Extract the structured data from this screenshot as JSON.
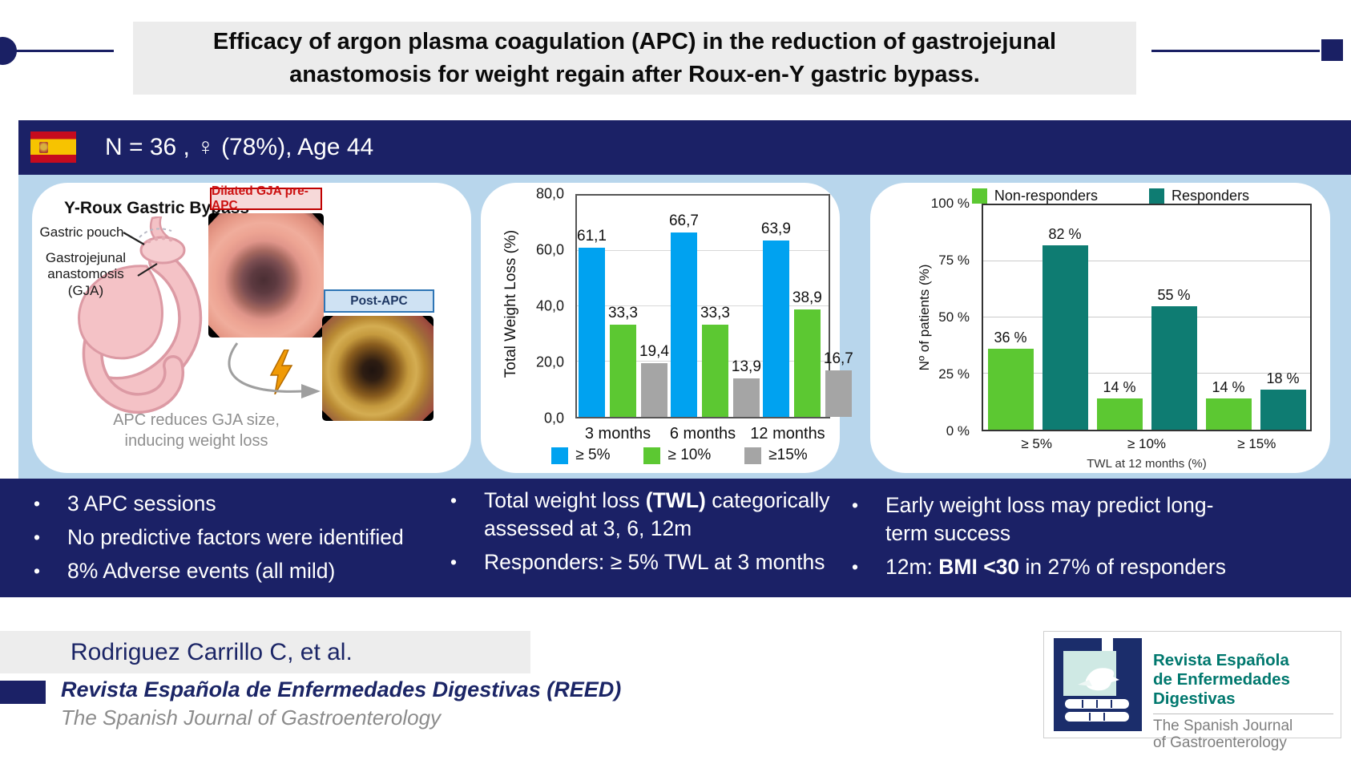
{
  "title": {
    "line1": "Efficacy of argon plasma coagulation (APC) in the reduction of gastrojejunal",
    "line2": "anastomosis for weight regain after Roux-en-Y gastric bypass."
  },
  "header": {
    "population": "N = 36 ,  ♀ (78%), Age 44"
  },
  "diagram": {
    "title": "Y-Roux Gastric Bypass",
    "label_pouch": "Gastric pouch",
    "label_gja_1": "Gastrojejunal",
    "label_gja_2": "anastomosis",
    "label_gja_3": "(GJA)",
    "pre_apc_label": "Dilated GJA pre-APC",
    "post_apc_label": "Post-APC",
    "caption_1": "APC reduces GJA size,",
    "caption_2": "inducing weight loss"
  },
  "chart_data": [
    {
      "type": "bar",
      "title": "",
      "ylabel": "Total Weight Loss (%)",
      "xlabel": "",
      "categories": [
        "3 months",
        "6 months",
        "12 months"
      ],
      "series": [
        {
          "name": "≥ 5%",
          "color": "#00a2f0",
          "values": [
            61.1,
            66.7,
            63.9
          ],
          "labels": [
            "61,1",
            "66,7",
            "63,9"
          ]
        },
        {
          "name": "≥ 10%",
          "color": "#5cc832",
          "values": [
            33.3,
            33.3,
            38.9
          ],
          "labels": [
            "33,3",
            "33,3",
            "38,9"
          ]
        },
        {
          "name": "≥15%",
          "color": "#a5a5a5",
          "values": [
            19.4,
            13.9,
            16.7
          ],
          "labels": [
            "19,4",
            "13,9",
            "16,7"
          ]
        }
      ],
      "ylim": [
        0,
        80
      ],
      "yticks": [
        "80,0",
        "60,0",
        "40,0",
        "20,0",
        "0,0"
      ],
      "gridlines_pct": [
        25,
        50,
        75
      ],
      "grid": true,
      "legend_position": "bottom"
    },
    {
      "type": "bar",
      "title": "",
      "ylabel": "Nº of patients (%)",
      "xlabel": "TWL at 12 months (%)",
      "categories": [
        "≥ 5%",
        "≥ 10%",
        "≥ 15%"
      ],
      "series": [
        {
          "name": "Non-responders",
          "color": "#5cc832",
          "values": [
            36,
            14,
            14
          ],
          "labels": [
            "36 %",
            "14 %",
            "14 %"
          ]
        },
        {
          "name": "Responders",
          "color": "#0e7c72",
          "values": [
            82,
            55,
            18
          ],
          "labels": [
            "82 %",
            "55 %",
            "18 %"
          ]
        }
      ],
      "ylim": [
        0,
        100
      ],
      "yticks": [
        "100 %",
        "75 %",
        "50 %",
        "25 %",
        "0 %"
      ],
      "gridlines_pct": [
        25,
        50,
        75
      ],
      "grid": true,
      "legend_position": "top"
    }
  ],
  "bullets": {
    "col1": [
      [
        {
          "t": "3 APC sessions"
        }
      ],
      [
        {
          "t": "No predictive factors were identified"
        }
      ],
      [
        {
          "t": "8% Adverse events (all mild)"
        }
      ]
    ],
    "col2": [
      [
        {
          "t": "Total weight loss "
        },
        {
          "t": "(TWL)",
          "b": true
        },
        {
          "t": " categorically"
        },
        {
          "br": true
        },
        {
          "t": "assessed at 3, 6, 12m"
        }
      ],
      [
        {
          "t": "Responders: ≥ 5% TWL at 3 months"
        }
      ]
    ],
    "col3": [
      [
        {
          "t": "Early weight loss may predict long-"
        },
        {
          "br": true
        },
        {
          "t": "term success"
        }
      ],
      [
        {
          "t": "12m: "
        },
        {
          "t": "BMI <30",
          "b": true
        },
        {
          "t": " in 27% of responders"
        }
      ]
    ]
  },
  "footer": {
    "citation": "Rodriguez Carrillo C, et al.",
    "journal_bold": "Revista Española de Enfermedades Digestivas (REED)",
    "journal_sub": "The Spanish Journal of Gastroenterology",
    "logo": {
      "line1": "Revista Española",
      "line2": "de Enfermedades Digestivas",
      "line3": "The Spanish Journal",
      "line4": "of Gastroenterology"
    }
  },
  "colors": {
    "navy": "#1b2166",
    "panel_blue": "#b8d6ec",
    "banner_gray": "#ececec",
    "bar_blue": "#00a2f0",
    "bar_green": "#5cc832",
    "bar_gray": "#a5a5a5",
    "bar_teal": "#0e7c72",
    "tag_red_text": "#cc1111",
    "tag_red_bg": "#f6d9d9",
    "tag_blue_text": "#1f3864",
    "tag_blue_bg": "#cfe2f3",
    "logo_teal": "#00786e",
    "flag_red": "#c60b1e",
    "flag_yellow": "#f7c300"
  }
}
